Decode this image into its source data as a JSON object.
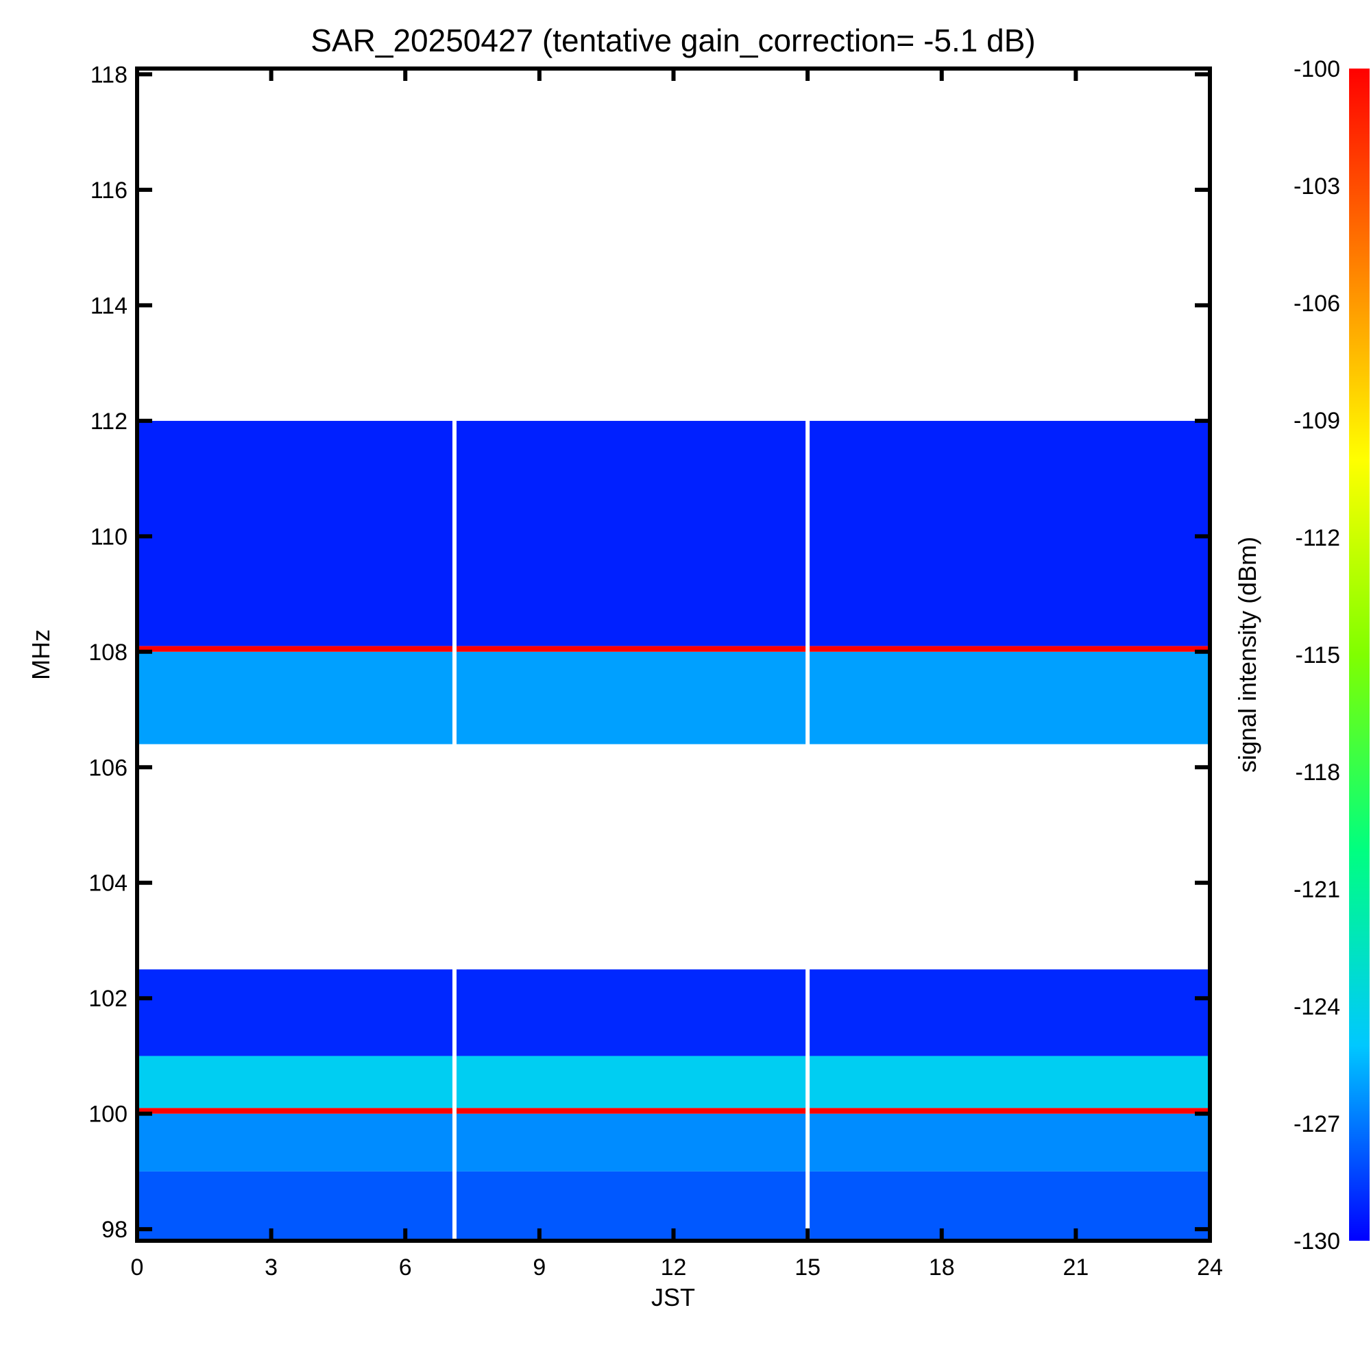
{
  "chart_data": {
    "type": "heatmap",
    "title": "SAR_20250427 (tentative gain_correction= -5.1 dB)",
    "xlabel": "JST",
    "ylabel": "MHz",
    "colorbar_label": "signal intensity (dBm)",
    "xlim": [
      0,
      24
    ],
    "ylim": [
      97.8,
      118.1
    ],
    "x_ticks": [
      "0",
      "3",
      "6",
      "9",
      "12",
      "15",
      "18",
      "21",
      "24"
    ],
    "y_ticks": [
      "98",
      "100",
      "102",
      "104",
      "106",
      "108",
      "110",
      "112",
      "114",
      "116",
      "118"
    ],
    "colorbar_range": [
      -130,
      -100
    ],
    "colorbar_ticks": [
      "-100",
      "-103",
      "-106",
      "-109",
      "-112",
      "-115",
      "-118",
      "-121",
      "-124",
      "-127",
      "-130"
    ],
    "colormap": [
      "#0000ff",
      "#00c8ff",
      "#00ff80",
      "#80ff00",
      "#ffff00",
      "#ff8000",
      "#ff0000"
    ],
    "gap_times_h": [
      7.1,
      15.0
    ],
    "frequency_bands": [
      {
        "from": 97.8,
        "to": 99.0,
        "level_dbm": -127.8
      },
      {
        "from": 99.0,
        "to": 100.0,
        "level_dbm": -126.5
      },
      {
        "from": 100.0,
        "to": 100.1,
        "level_dbm": -100.0
      },
      {
        "from": 100.1,
        "to": 101.0,
        "level_dbm": -124.5
      },
      {
        "from": 101.0,
        "to": 102.5,
        "level_dbm": -129.0
      },
      {
        "from": 102.5,
        "to": 106.4,
        "level_dbm": -131.0
      },
      {
        "from": 106.4,
        "to": 108.0,
        "level_dbm": -126.0
      },
      {
        "from": 108.0,
        "to": 108.1,
        "level_dbm": -100.0
      },
      {
        "from": 108.1,
        "to": 112.0,
        "level_dbm": -129.2
      },
      {
        "from": 112.0,
        "to": 118.1,
        "level_dbm": -131.0
      }
    ]
  }
}
